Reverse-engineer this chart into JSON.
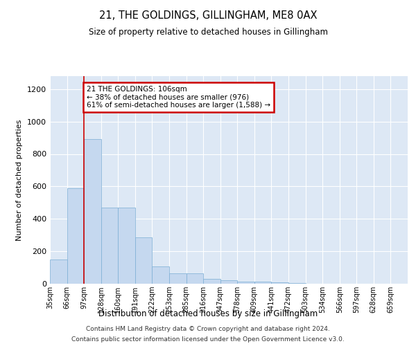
{
  "title": "21, THE GOLDINGS, GILLINGHAM, ME8 0AX",
  "subtitle": "Size of property relative to detached houses in Gillingham",
  "xlabel": "Distribution of detached houses by size in Gillingham",
  "ylabel": "Number of detached properties",
  "bar_color": "#c5d8ef",
  "bar_edge_color": "#7aadd4",
  "background_color": "#ffffff",
  "plot_bg_color": "#dde8f5",
  "grid_color": "#ffffff",
  "annotation_text": "21 THE GOLDINGS: 106sqm\n← 38% of detached houses are smaller (976)\n61% of semi-detached houses are larger (1,588) →",
  "annotation_box_color": "#cc0000",
  "vline_color": "#cc0000",
  "vline_x_index": 2,
  "categories": [
    "35sqm",
    "66sqm",
    "97sqm",
    "128sqm",
    "160sqm",
    "191sqm",
    "222sqm",
    "253sqm",
    "285sqm",
    "316sqm",
    "347sqm",
    "378sqm",
    "409sqm",
    "441sqm",
    "472sqm",
    "503sqm",
    "534sqm",
    "566sqm",
    "597sqm",
    "628sqm",
    "659sqm"
  ],
  "values": [
    150,
    590,
    890,
    470,
    470,
    285,
    105,
    62,
    62,
    30,
    22,
    14,
    14,
    10,
    5,
    0,
    0,
    0,
    0,
    0,
    0
  ],
  "ylim": [
    0,
    1280
  ],
  "yticks": [
    0,
    200,
    400,
    600,
    800,
    1000,
    1200
  ],
  "footer_line1": "Contains HM Land Registry data © Crown copyright and database right 2024.",
  "footer_line2": "Contains public sector information licensed under the Open Government Licence v3.0."
}
